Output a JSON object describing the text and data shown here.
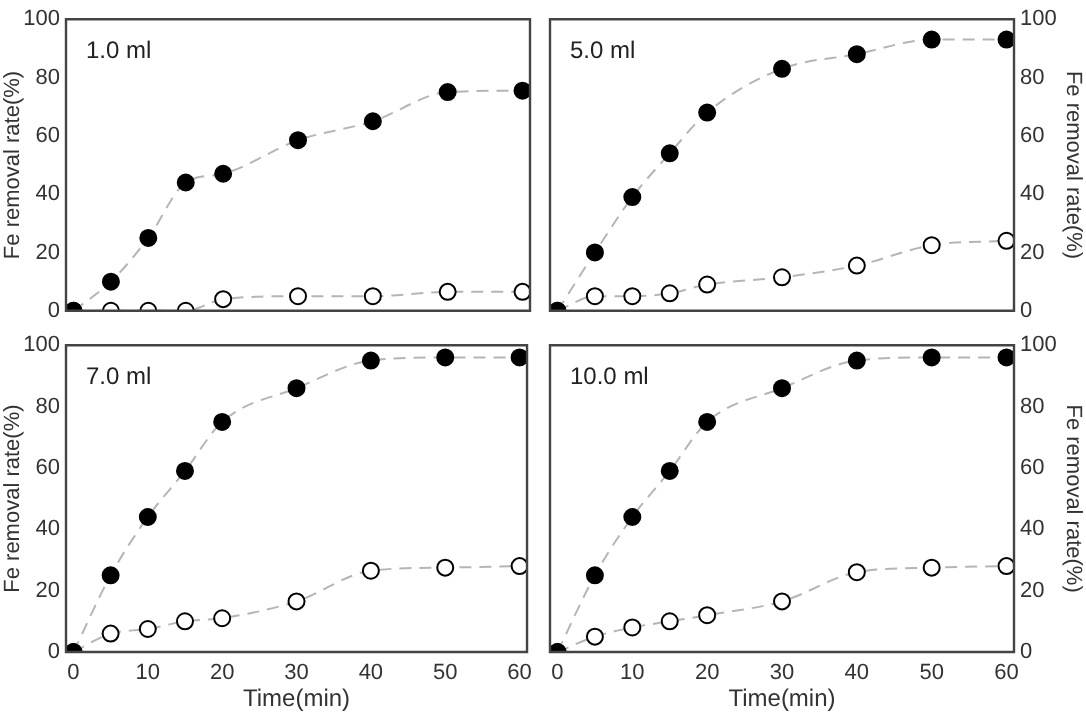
{
  "chart_data": [
    {
      "type": "line",
      "ylabel": "Fe removal rate(%)",
      "annotations": [
        "1.0 ml"
      ],
      "x": [
        0,
        5,
        10,
        15,
        20,
        30,
        40,
        50,
        60
      ],
      "xlim": [
        -1,
        61
      ],
      "xticks": [
        0,
        10,
        20,
        30,
        40,
        50,
        60
      ],
      "ylim": [
        0,
        100
      ],
      "yticks": [
        0,
        20,
        40,
        60,
        80,
        100
      ],
      "tick_labels": "y",
      "marker": "circle",
      "line_style": "dashed",
      "series": [
        {
          "color": "#000000",
          "values": [
            0,
            10,
            25,
            44,
            47,
            58.5,
            65,
            75,
            75.5
          ]
        },
        {
          "color": "#ffffff",
          "values": [
            0,
            0,
            0,
            0,
            4,
            5,
            5,
            6.5,
            6.5
          ]
        }
      ]
    },
    {
      "type": "line",
      "ylabel": "Fe removal rate(%)",
      "annotations": [
        "5.0 ml"
      ],
      "x": [
        0,
        5,
        10,
        15,
        20,
        30,
        40,
        50,
        60
      ],
      "xlim": [
        -1,
        61
      ],
      "xticks": [
        0,
        10,
        20,
        30,
        40,
        50,
        60
      ],
      "ylim": [
        0,
        100
      ],
      "yticks": [
        0,
        20,
        40,
        60,
        80,
        100
      ],
      "tick_labels": "y",
      "marker": "circle",
      "line_style": "dashed",
      "series": [
        {
          "color": "#000000",
          "values": [
            0,
            20,
            39,
            54,
            68,
            83,
            88,
            93,
            93
          ]
        },
        {
          "color": "#ffffff",
          "values": [
            0,
            5,
            5,
            6,
            9,
            11.5,
            15.5,
            22.5,
            24
          ]
        }
      ]
    },
    {
      "type": "line",
      "xlabel": "Time(min)",
      "ylabel": "Fe removal rate(%)",
      "annotations": [
        "7.0 ml"
      ],
      "x": [
        0,
        5,
        10,
        15,
        20,
        30,
        40,
        50,
        60
      ],
      "xlim": [
        -1,
        61
      ],
      "xticks": [
        0,
        10,
        20,
        30,
        40,
        50,
        60
      ],
      "ylim": [
        0,
        100
      ],
      "yticks": [
        0,
        20,
        40,
        60,
        80,
        100
      ],
      "marker": "circle",
      "line_style": "dashed",
      "series": [
        {
          "color": "#000000",
          "values": [
            0,
            25,
            44,
            59,
            75,
            86,
            95,
            96,
            96
          ]
        },
        {
          "color": "#ffffff",
          "values": [
            0,
            6,
            7.5,
            10,
            11,
            16.5,
            26.5,
            27.5,
            28
          ]
        }
      ]
    },
    {
      "type": "line",
      "xlabel": "Time(min)",
      "ylabel": "Fe removal rate(%)",
      "annotations": [
        "10.0 ml"
      ],
      "x": [
        0,
        5,
        10,
        15,
        20,
        30,
        40,
        50,
        60
      ],
      "xlim": [
        -1,
        61
      ],
      "xticks": [
        0,
        10,
        20,
        30,
        40,
        50,
        60
      ],
      "ylim": [
        0,
        100
      ],
      "yticks": [
        0,
        20,
        40,
        60,
        80,
        100
      ],
      "marker": "circle",
      "line_style": "dashed",
      "series": [
        {
          "color": "#000000",
          "values": [
            0,
            25,
            44,
            59,
            75,
            86,
            95,
            96,
            96
          ]
        },
        {
          "color": "#ffffff",
          "values": [
            0,
            5,
            8,
            10,
            12,
            16.5,
            26,
            27.5,
            28
          ]
        }
      ]
    }
  ]
}
